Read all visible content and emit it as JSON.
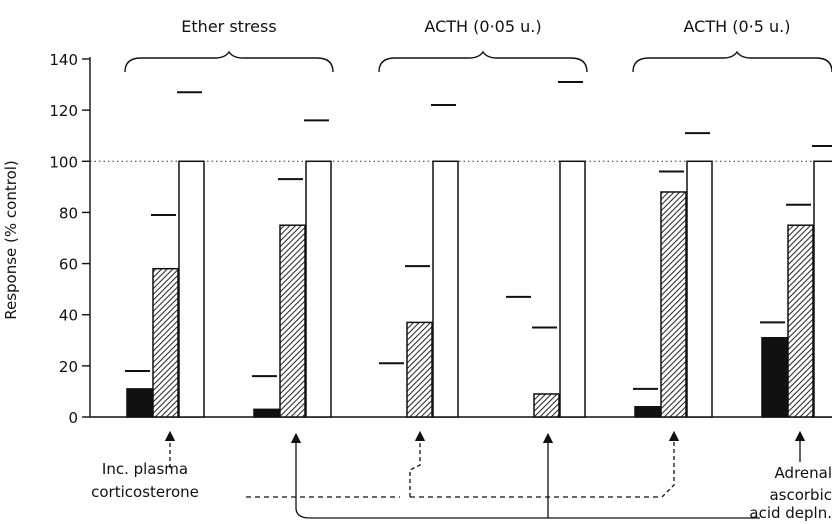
{
  "chart_data": {
    "type": "bar",
    "ylabel": "Response (% control)",
    "ylim": [
      0,
      140
    ],
    "yticks": [
      0,
      20,
      40,
      60,
      80,
      100,
      120,
      140
    ],
    "reference_line": 100,
    "groups": [
      {
        "label": "Ether stress",
        "clusters": [
          {
            "bars": [
              {
                "fill": "black",
                "value": 11,
                "error": 18
              },
              {
                "fill": "hatched",
                "value": 58,
                "error": 79
              },
              {
                "fill": "white",
                "value": 100,
                "error": 127
              }
            ]
          },
          {
            "bars": [
              {
                "fill": "black",
                "value": 3,
                "error": 16
              },
              {
                "fill": "hatched",
                "value": 75,
                "error": 93
              },
              {
                "fill": "white",
                "value": 100,
                "error": 116
              }
            ]
          }
        ]
      },
      {
        "label": "ACTH (0·05 u.)",
        "clusters": [
          {
            "bars": [
              {
                "fill": "black",
                "value": 0,
                "error": 21
              },
              {
                "fill": "hatched",
                "value": 37,
                "error": 59
              },
              {
                "fill": "white",
                "value": 100,
                "error": 122
              }
            ]
          },
          {
            "bars": [
              {
                "fill": "black",
                "value": 0,
                "error": 47
              },
              {
                "fill": "hatched",
                "value": 9,
                "error": 35
              },
              {
                "fill": "white",
                "value": 100,
                "error": 131
              }
            ]
          }
        ]
      },
      {
        "label": "ACTH (0·5 u.)",
        "clusters": [
          {
            "bars": [
              {
                "fill": "black",
                "value": 4,
                "error": 11
              },
              {
                "fill": "hatched",
                "value": 88,
                "error": 96
              },
              {
                "fill": "white",
                "value": 100,
                "error": 111
              }
            ]
          },
          {
            "bars": [
              {
                "fill": "black",
                "value": 31,
                "error": 37
              },
              {
                "fill": "hatched",
                "value": 75,
                "error": 83
              },
              {
                "fill": "white",
                "value": 100,
                "error": 106
              }
            ]
          }
        ]
      }
    ],
    "annotations": {
      "left_label": [
        "Inc. plasma",
        "corticosterone"
      ],
      "right_label": [
        "Adrenal",
        "ascorbic",
        "acid depln."
      ]
    }
  }
}
